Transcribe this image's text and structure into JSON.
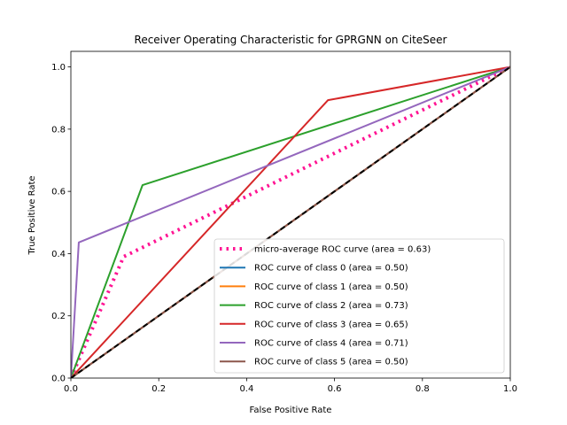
{
  "chart_data": {
    "type": "line",
    "title": "Receiver Operating Characteristic for GPRGNN on CiteSeer",
    "xlabel": "False Positive Rate",
    "ylabel": "True Positive Rate",
    "xlim": [
      0,
      1
    ],
    "ylim": [
      0,
      1.05
    ],
    "xticks": [
      "0.0",
      "0.2",
      "0.4",
      "0.6",
      "0.8",
      "1.0"
    ],
    "yticks": [
      "0.0",
      "0.2",
      "0.4",
      "0.6",
      "0.8",
      "1.0"
    ],
    "grid": false,
    "legend_position": "lower right",
    "series": [
      {
        "name": "micro-average ROC curve (area = 0.63)",
        "color": "#ff1493",
        "style": "dotted",
        "x": [
          0.0,
          0.12,
          1.0
        ],
        "y": [
          0.0,
          0.39,
          1.0
        ]
      },
      {
        "name": "ROC curve of class 0 (area = 0.50)",
        "color": "#1f77b4",
        "style": "solid",
        "x": [
          0.0,
          1.0
        ],
        "y": [
          0.0,
          1.0
        ]
      },
      {
        "name": "ROC curve of class 1 (area = 0.50)",
        "color": "#ff7f0e",
        "style": "solid",
        "x": [
          0.0,
          1.0
        ],
        "y": [
          0.0,
          1.0
        ]
      },
      {
        "name": "ROC curve of class 2 (area = 0.73)",
        "color": "#2ca02c",
        "style": "solid",
        "x": [
          0.0,
          0.163,
          1.0
        ],
        "y": [
          0.0,
          0.62,
          1.0
        ]
      },
      {
        "name": "ROC curve of class 3 (area = 0.65)",
        "color": "#d62728",
        "style": "solid",
        "x": [
          0.0,
          0.585,
          1.0
        ],
        "y": [
          0.0,
          0.893,
          1.0
        ]
      },
      {
        "name": "ROC curve of class 4 (area = 0.71)",
        "color": "#9467bd",
        "style": "solid",
        "x": [
          0.0,
          0.018,
          1.0
        ],
        "y": [
          0.0,
          0.436,
          1.0
        ]
      },
      {
        "name": "ROC curve of class 5 (area = 0.50)",
        "color": "#8c564b",
        "style": "solid",
        "x": [
          0.0,
          1.0
        ],
        "y": [
          0.0,
          1.0
        ]
      }
    ],
    "reference_line": {
      "color": "#000000",
      "style": "dashed",
      "x": [
        0.0,
        1.0
      ],
      "y": [
        0.0,
        1.0
      ]
    }
  }
}
